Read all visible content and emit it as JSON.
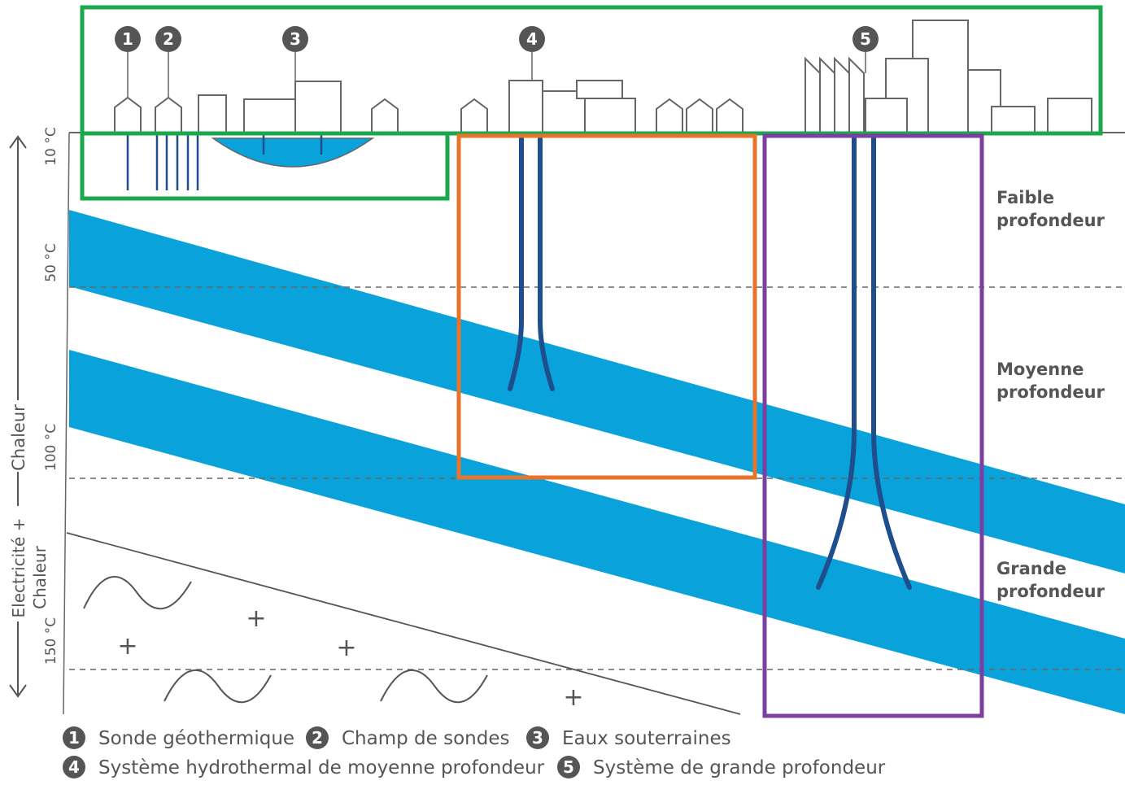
{
  "colors": {
    "aquifer": "#0aa2da",
    "pipe": "#1f4e8c",
    "green_box": "#1aa84b",
    "orange_box": "#e8732a",
    "purple_box": "#7b3fa0",
    "badge": "#555555",
    "text": "#555555"
  },
  "temperatures": [
    "10 °C",
    "50 °C",
    "100 °C",
    "150 °C"
  ],
  "axis": {
    "upper_label": "Chaleur",
    "lower_label_line1": "Electricité +",
    "lower_label_line2": "Chaleur",
    "separator": "—"
  },
  "depth_labels": {
    "shallow": [
      "Faible",
      "profondeur"
    ],
    "medium": [
      "Moyenne",
      "profondeur"
    ],
    "deep": [
      "Grande",
      "profondeur"
    ]
  },
  "badges": [
    "1",
    "2",
    "3",
    "4",
    "5"
  ],
  "legend": [
    {
      "num": "1",
      "label": "Sonde géothermique"
    },
    {
      "num": "2",
      "label": "Champ de sondes"
    },
    {
      "num": "3",
      "label": "Eaux souterraines"
    },
    {
      "num": "4",
      "label": "Système hydrothermal de moyenne profondeur"
    },
    {
      "num": "5",
      "label": "Système de grande profondeur"
    }
  ],
  "symbols": {
    "plus": "+"
  }
}
